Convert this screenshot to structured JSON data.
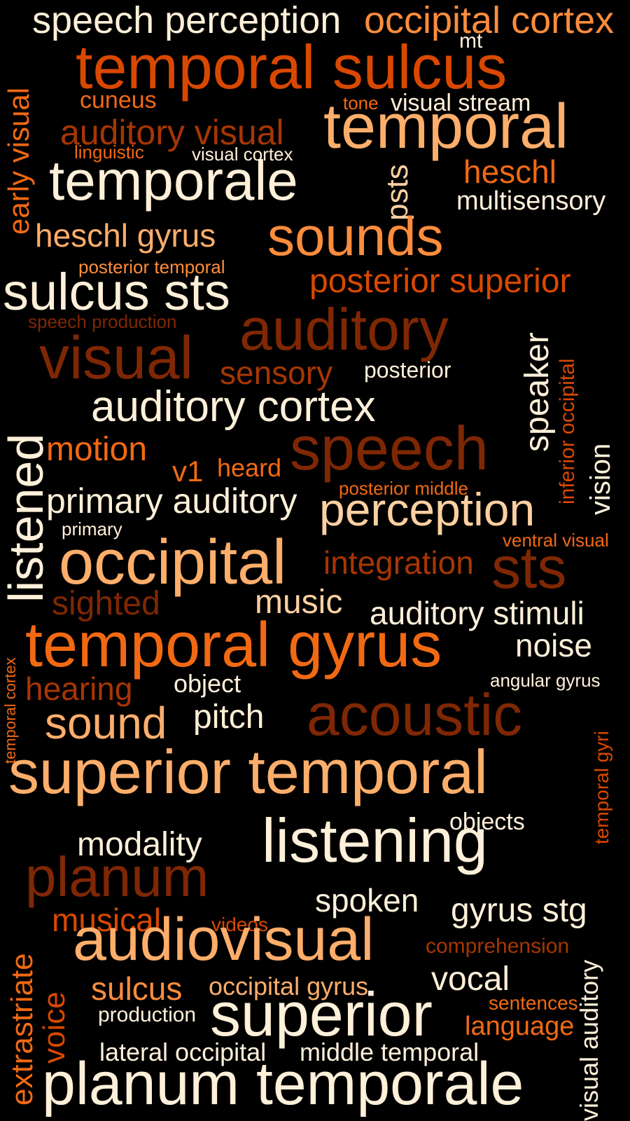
{
  "palette": {
    "background": "#000000",
    "cream": "#FFF0D9",
    "light_peach": "#FDD0A2",
    "light_orange": "#FDAE6B",
    "orange": "#FD8D3C",
    "dark_orange": "#F16913",
    "rust": "#D94801",
    "dark_rust": "#A63603",
    "brown": "#7F2704"
  },
  "words": [
    {
      "text": "speech perception",
      "color": "#FFF0D9"
    },
    {
      "text": "occipital cortex",
      "color": "#FD8D3C"
    },
    {
      "text": "mt",
      "color": "#FFF0D9"
    },
    {
      "text": "temporal sulcus",
      "color": "#D94801"
    },
    {
      "text": "early visual",
      "color": "#F16913"
    },
    {
      "text": "cuneus",
      "color": "#F16913"
    },
    {
      "text": "tone",
      "color": "#F16913"
    },
    {
      "text": "visual stream",
      "color": "#FFF0D9"
    },
    {
      "text": "auditory visual",
      "color": "#A63603"
    },
    {
      "text": "temporal",
      "color": "#FDAE6B"
    },
    {
      "text": "linguistic",
      "color": "#F16913"
    },
    {
      "text": "visual cortex",
      "color": "#FFF0D9"
    },
    {
      "text": "temporale",
      "color": "#FFF0D9"
    },
    {
      "text": "psts",
      "color": "#FDD0A2"
    },
    {
      "text": "heschl",
      "color": "#F16913"
    },
    {
      "text": "multisensory",
      "color": "#FFF0D9"
    },
    {
      "text": "heschl gyrus",
      "color": "#FDAE6B"
    },
    {
      "text": "sounds",
      "color": "#FD8D3C"
    },
    {
      "text": "posterior temporal",
      "color": "#FD8D3C"
    },
    {
      "text": "sulcus sts",
      "color": "#FFF0D9"
    },
    {
      "text": "posterior superior",
      "color": "#D94801"
    },
    {
      "text": "speech production",
      "color": "#7F2704"
    },
    {
      "text": "auditory",
      "color": "#7F2704"
    },
    {
      "text": "speaker",
      "color": "#FFF0D9"
    },
    {
      "text": "inferior occipital",
      "color": "#D94801"
    },
    {
      "text": "visual",
      "color": "#7F2704"
    },
    {
      "text": "sensory",
      "color": "#A63603"
    },
    {
      "text": "posterior",
      "color": "#FFF0D9"
    },
    {
      "text": "auditory cortex",
      "color": "#FFF0D9"
    },
    {
      "text": "listened",
      "color": "#FFF0D9"
    },
    {
      "text": "motion",
      "color": "#F16913"
    },
    {
      "text": "speech",
      "color": "#7F2704"
    },
    {
      "text": "vision",
      "color": "#FFF0D9"
    },
    {
      "text": "v1",
      "color": "#F16913"
    },
    {
      "text": "heard",
      "color": "#F16913"
    },
    {
      "text": "posterior middle",
      "color": "#F16913"
    },
    {
      "text": "primary auditory",
      "color": "#FFF0D9"
    },
    {
      "text": "perception",
      "color": "#FDD0A2"
    },
    {
      "text": "primary",
      "color": "#FFF0D9"
    },
    {
      "text": "ventral visual",
      "color": "#F16913"
    },
    {
      "text": "occipital",
      "color": "#FDAE6B"
    },
    {
      "text": "integration",
      "color": "#A63603"
    },
    {
      "text": "sts",
      "color": "#7F2704"
    },
    {
      "text": "sighted",
      "color": "#7F2704"
    },
    {
      "text": "music",
      "color": "#FDD0A2"
    },
    {
      "text": "auditory stimuli",
      "color": "#FFF0D9"
    },
    {
      "text": "temporal cortex",
      "color": "#F16913"
    },
    {
      "text": "temporal gyrus",
      "color": "#F16913"
    },
    {
      "text": "noise",
      "color": "#FFF0D9"
    },
    {
      "text": "angular gyrus",
      "color": "#FFF0D9"
    },
    {
      "text": "hearing",
      "color": "#A63603"
    },
    {
      "text": "object",
      "color": "#FFF0D9"
    },
    {
      "text": "acoustic",
      "color": "#7F2704"
    },
    {
      "text": "sound",
      "color": "#FDAE6B"
    },
    {
      "text": "pitch",
      "color": "#FFF0D9"
    },
    {
      "text": "temporal gyri",
      "color": "#D94801"
    },
    {
      "text": "superior temporal",
      "color": "#FDAE6B"
    },
    {
      "text": "objects",
      "color": "#FFF0D9"
    },
    {
      "text": "modality",
      "color": "#FFF0D9"
    },
    {
      "text": "listening",
      "color": "#FFF0D9"
    },
    {
      "text": "planum",
      "color": "#7F2704"
    },
    {
      "text": "spoken",
      "color": "#FFF0D9"
    },
    {
      "text": "musical",
      "color": "#D94801"
    },
    {
      "text": "videos",
      "color": "#D94801"
    },
    {
      "text": "gyrus stg",
      "color": "#FFF0D9"
    },
    {
      "text": "extrastriate",
      "color": "#F16913"
    },
    {
      "text": "audiovisual",
      "color": "#FDAE6B"
    },
    {
      "text": "comprehension",
      "color": "#A63603"
    },
    {
      "text": "visual auditory",
      "color": "#FFF0D9"
    },
    {
      "text": "voice",
      "color": "#D94801"
    },
    {
      "text": "sulcus",
      "color": "#FD8D3C"
    },
    {
      "text": "occipital gyrus",
      "color": "#FDAE6B"
    },
    {
      "text": "vocal",
      "color": "#FFF0D9"
    },
    {
      "text": "production",
      "color": "#FFF0D9"
    },
    {
      "text": "superior",
      "color": "#FFF0D9"
    },
    {
      "text": "sentences",
      "color": "#F16913"
    },
    {
      "text": "language",
      "color": "#F16913"
    },
    {
      "text": "lateral occipital",
      "color": "#FFF0D9"
    },
    {
      "text": "middle temporal",
      "color": "#FFF0D9"
    },
    {
      "text": "planum temporale",
      "color": "#FFF0D9"
    }
  ]
}
